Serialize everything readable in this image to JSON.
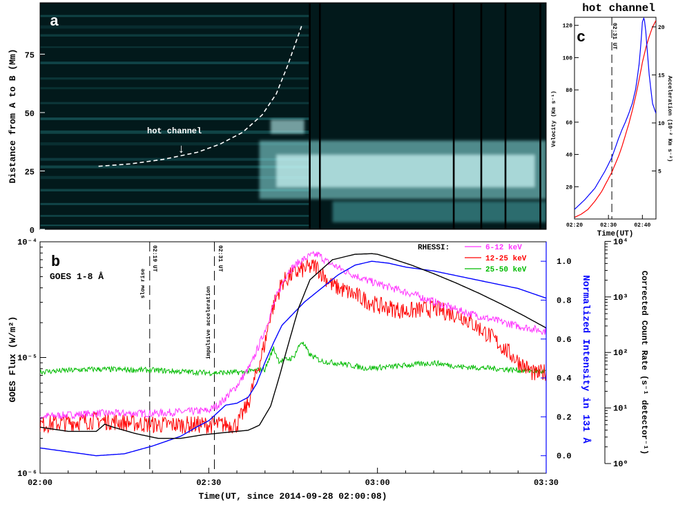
{
  "colors": {
    "rhessi_low": "#ff33ff",
    "rhessi_mid": "#ff0000",
    "rhessi_high": "#00bb00",
    "intensity_131": "#0000ff",
    "goes": "#000000",
    "velocity": "#ff0000",
    "acceleration": "#0000ff",
    "map_low": "#02191b",
    "map_high": "#d8ffff"
  },
  "panel_a": {
    "letter": "a",
    "ylabel": "Distance from A to B (Mm)",
    "yticks": [
      "0",
      "25",
      "50",
      "75"
    ],
    "annotation": "hot channel",
    "arrow_glyph": "↓"
  },
  "panel_b": {
    "letter": "b",
    "goes_label": "GOES 1-8 Å",
    "rhessi_title": "RHESSI:",
    "legend": [
      "6-12 keV",
      "12-25 keV",
      "25-50 keV"
    ],
    "ylabel_left": "GOES Flux (W/m²)",
    "ylabel_mid": "Normalized Intensity in 131 Å",
    "ylabel_right": "Corrected Count Rate (s⁻¹ detector⁻¹)",
    "xlabel": "Time(UT, since 2014-09-28 02:00:08)",
    "xticks": [
      "02:00",
      "02:30",
      "03:00",
      "03:30"
    ],
    "left_ticks": [
      "10⁻⁴",
      "10⁻⁵",
      "10⁻⁶"
    ],
    "mid_ticks": [
      "1.0",
      "0.8",
      "0.6",
      "0.4",
      "0.2",
      "0.0"
    ],
    "right_ticks": [
      "10⁴",
      "10³",
      "10²",
      "10¹",
      "10⁰"
    ],
    "marker1_time": "02:19 UT",
    "marker1_label": "slow rise",
    "marker2_time": "02:31 UT",
    "marker2_label": "impulsive acceleration"
  },
  "panel_c": {
    "letter": "c",
    "title": "hot channel",
    "marker_time": "02:31 UT",
    "ylabel_left": "Velocity (Km s⁻¹)",
    "ylabel_right": "Acceleration (10⁻² Km s⁻²)",
    "xlabel": "Time(UT)",
    "xticks": [
      "02:20",
      "02:30",
      "02:40"
    ],
    "left_ticks": [
      "120",
      "100",
      "80",
      "60",
      "40",
      "20"
    ],
    "right_ticks": [
      "20",
      "15",
      "10",
      "5"
    ]
  },
  "chart_data": [
    {
      "type": "heatmap",
      "panel": "a",
      "ylabel": "Distance from A to B (Mm)",
      "ylim": [
        0,
        97
      ],
      "xlim_minutes_after_0200": [
        0,
        90
      ],
      "annotation": "hot channel",
      "hot_channel_track": {
        "x_minutes": [
          10.4,
          16,
          22,
          28,
          32,
          36,
          39.5,
          42,
          44,
          46.5
        ],
        "y_Mm": [
          27,
          28,
          30,
          33,
          36.5,
          41.5,
          49,
          58,
          70,
          87
        ]
      }
    },
    {
      "type": "line",
      "panel": "b",
      "x_unit": "minutes after 02:00",
      "xlim": [
        0,
        90
      ],
      "ylim_goes_log10": [
        -6,
        -4
      ],
      "ylim_intensity": [
        -0.09,
        1.1
      ],
      "ylim_counts_log10": [
        0,
        4
      ],
      "vertical_markers": [
        {
          "x": 19.5,
          "label": "slow rise",
          "time": "02:19 UT"
        },
        {
          "x": 31.0,
          "label": "impulsive acceleration",
          "time": "02:31 UT"
        }
      ],
      "series": [
        {
          "name": "GOES 1-8 Å",
          "axis": "goes",
          "x": [
            0,
            5,
            10,
            11.5,
            13,
            17,
            21,
            25,
            29,
            33,
            37,
            39,
            41,
            42.5,
            44,
            46,
            48,
            52,
            56,
            59,
            60,
            62,
            66,
            70,
            74,
            78,
            82,
            86,
            90
          ],
          "y": [
            2.5e-06,
            2.3e-06,
            2.3e-06,
            2.65e-06,
            2.5e-06,
            2.2e-06,
            2e-06,
            2e-06,
            2.15e-06,
            2.25e-06,
            2.35e-06,
            2.6e-06,
            3.8e-06,
            6.7e-06,
            1.23e-05,
            2.7e-05,
            4.7e-05,
            7e-05,
            7.8e-05,
            7.9e-05,
            7.8e-05,
            7.3e-05,
            6.3e-05,
            5.3e-05,
            4.4e-05,
            3.6e-05,
            2.9e-05,
            2.3e-05,
            1.8e-05
          ]
        },
        {
          "name": "6-12 keV",
          "axis": "counts",
          "x": [
            0,
            10,
            20,
            30,
            32,
            35,
            37.5,
            40,
            42,
            44,
            46,
            48,
            49.5,
            51,
            54,
            58,
            62,
            66,
            70,
            75,
            80,
            85,
            90
          ],
          "y": [
            7,
            8,
            8,
            9,
            12,
            25,
            60,
            250,
            1000,
            2800,
            4200,
            5500,
            5800,
            4300,
            3000,
            2000,
            1500,
            1150,
            820,
            550,
            400,
            300,
            240
          ]
        },
        {
          "name": "12-25 keV",
          "axis": "counts",
          "x": [
            0,
            10,
            20,
            30,
            35,
            37,
            40,
            41,
            43,
            45,
            47,
            49,
            52,
            55,
            60,
            65,
            70,
            75,
            80,
            85,
            88,
            90
          ],
          "y": [
            5,
            6,
            5,
            5,
            5,
            12,
            150,
            500,
            1800,
            2600,
            3200,
            3600,
            1600,
            1200,
            700,
            550,
            620,
            450,
            200,
            70,
            40,
            45
          ]
        },
        {
          "name": "25-50 keV",
          "axis": "counts",
          "x": [
            0,
            10,
            20,
            30,
            36,
            40,
            41.5,
            42.5,
            45,
            46.5,
            48,
            50,
            54,
            58,
            62,
            70,
            75,
            80,
            85,
            90
          ],
          "y": [
            45,
            50,
            48,
            43,
            44,
            50,
            120,
            70,
            80,
            160,
            90,
            70,
            62,
            52,
            55,
            65,
            55,
            52,
            48,
            45
          ]
        },
        {
          "name": "131 Å",
          "axis": "intensity",
          "x": [
            0,
            5,
            10,
            15,
            20,
            25,
            28,
            30,
            33,
            35,
            37,
            38.5,
            40,
            41.5,
            43,
            45,
            47,
            50,
            53,
            56,
            59,
            62,
            65,
            70,
            75,
            80,
            85,
            90
          ],
          "y": [
            0.04,
            0.02,
            0.0,
            0.01,
            0.05,
            0.1,
            0.15,
            0.18,
            0.26,
            0.27,
            0.3,
            0.37,
            0.48,
            0.58,
            0.67,
            0.73,
            0.79,
            0.86,
            0.93,
            0.98,
            1.0,
            0.99,
            0.97,
            0.95,
            0.92,
            0.89,
            0.86,
            0.81
          ]
        }
      ]
    },
    {
      "type": "line",
      "panel": "c",
      "title": "hot channel",
      "x_unit": "minutes after 02:00",
      "xlim": [
        20,
        44
      ],
      "ylim_velocity": [
        0,
        125
      ],
      "ylim_acceleration": [
        0,
        21
      ],
      "vertical_marker": {
        "x": 31.0,
        "time": "02:31 UT"
      },
      "series": [
        {
          "name": "Velocity",
          "axis": "velocity",
          "x": [
            20,
            22,
            24,
            26,
            28,
            30,
            31,
            32,
            33,
            34,
            35,
            36,
            37,
            38,
            39,
            40,
            41,
            42,
            43,
            44
          ],
          "y": [
            1,
            3,
            6,
            11,
            17,
            25,
            29,
            34,
            39,
            45,
            52,
            59,
            67,
            76,
            86,
            97,
            106,
            113,
            119,
            123
          ]
        },
        {
          "name": "Acceleration",
          "axis": "acceleration",
          "x": [
            20,
            23,
            26,
            29,
            31,
            32,
            33,
            34,
            35,
            36,
            37,
            38,
            39,
            39.5,
            40,
            40.5,
            41,
            42,
            43,
            44
          ],
          "y": [
            1,
            2,
            3.2,
            5,
            6.4,
            7.4,
            8.4,
            9.3,
            10.1,
            11,
            12,
            13.5,
            16,
            18,
            20.5,
            21,
            19.5,
            15,
            12,
            11
          ]
        }
      ]
    }
  ]
}
